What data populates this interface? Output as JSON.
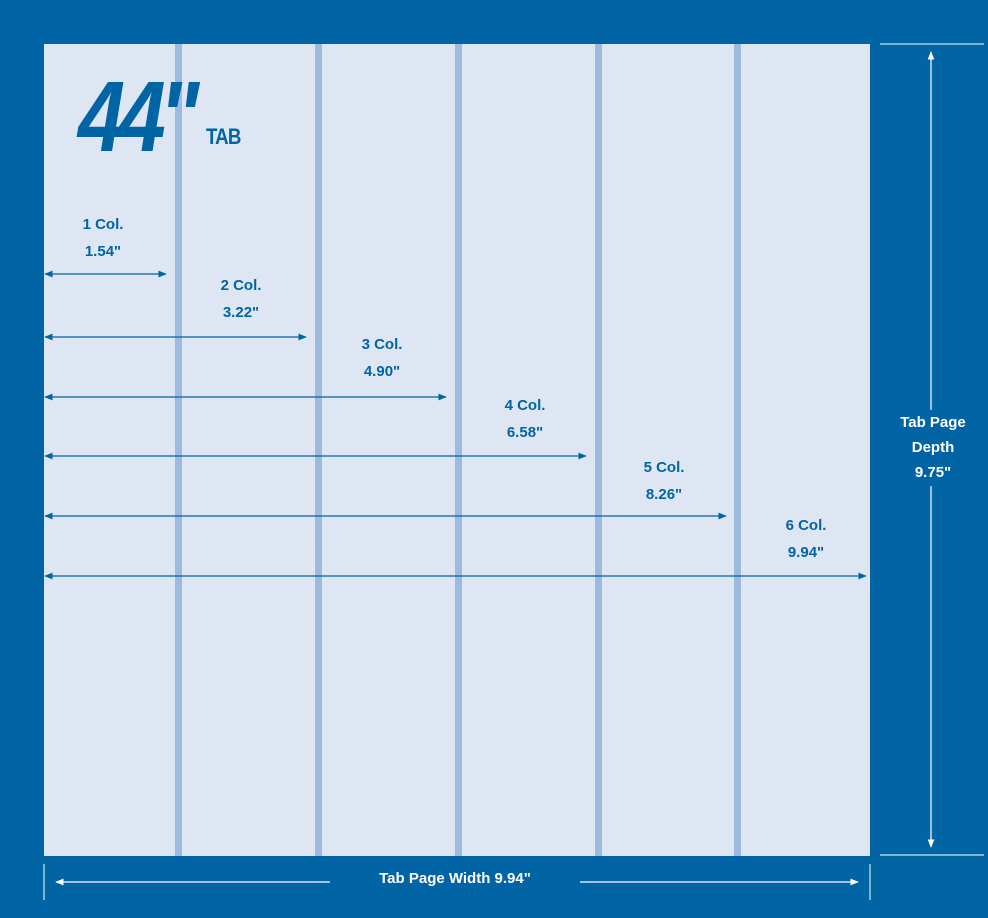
{
  "logo": {
    "size": "44\"",
    "suffix": "TAB"
  },
  "columns": [
    {
      "name": "1 Col.",
      "width": "1.54\""
    },
    {
      "name": "2 Col.",
      "width": "3.22\""
    },
    {
      "name": "3 Col.",
      "width": "4.90\""
    },
    {
      "name": "4 Col.",
      "width": "6.58\""
    },
    {
      "name": "5 Col.",
      "width": "8.26\""
    },
    {
      "name": "6 Col.",
      "width": "9.94\""
    }
  ],
  "page_width_label": "Tab Page Width 9.94\"",
  "page_depth_label": {
    "line1": "Tab Page",
    "line2": "Depth",
    "line3": "9.75\""
  },
  "colors": {
    "frame": "#0064a5",
    "page": "#dde6f2",
    "gutter": "#9dbbe0",
    "arrow": "#0064a5"
  }
}
